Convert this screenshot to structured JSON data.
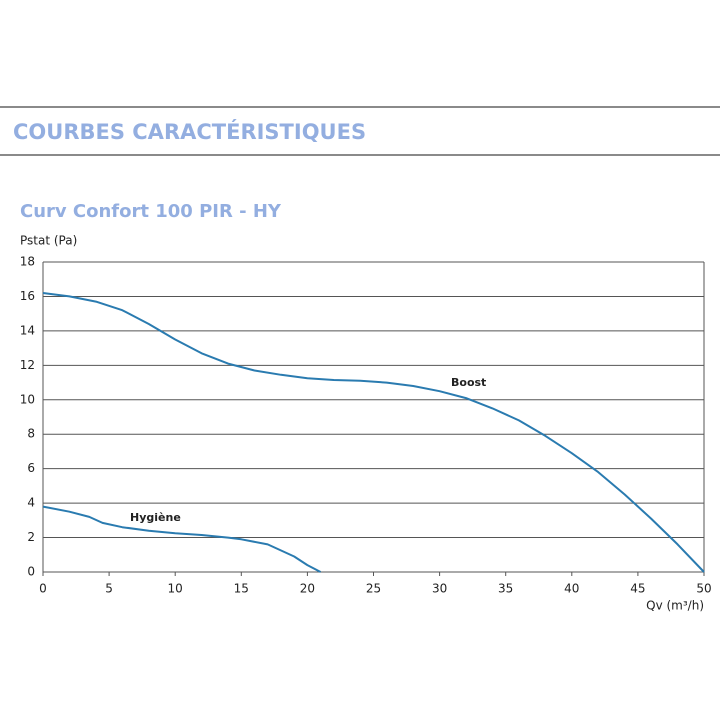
{
  "header": {
    "title": "COURBES CARACTÉRISTIQUES"
  },
  "chart_data": {
    "type": "line",
    "title": "Curv Confort 100 PIR - HY",
    "ylabel": "Pstat (Pa)",
    "xlabel": "Qv (m³/h)",
    "xlim": [
      0,
      50
    ],
    "ylim": [
      0,
      18
    ],
    "xticks": [
      0,
      5,
      10,
      15,
      20,
      25,
      30,
      35,
      40,
      45,
      50
    ],
    "yticks": [
      0,
      2,
      4,
      6,
      8,
      10,
      12,
      14,
      16,
      18
    ],
    "grid": true,
    "series": [
      {
        "name": "Boost",
        "color": "#2a7bb0",
        "x": [
          0,
          2,
          4,
          6,
          8,
          10,
          12,
          14,
          16,
          18,
          20,
          22,
          24,
          26,
          28,
          30,
          32,
          34,
          36,
          38,
          40,
          42,
          44,
          46,
          48,
          50
        ],
        "values": [
          16.2,
          16.0,
          15.7,
          15.2,
          14.4,
          13.5,
          12.7,
          12.1,
          11.7,
          11.45,
          11.25,
          11.15,
          11.1,
          11.0,
          10.8,
          10.5,
          10.1,
          9.5,
          8.8,
          7.9,
          6.9,
          5.8,
          4.5,
          3.1,
          1.6,
          0
        ]
      },
      {
        "name": "Hygiène",
        "color": "#2a7bb0",
        "x": [
          0,
          2,
          3.5,
          4.5,
          6,
          8,
          10,
          12,
          14,
          15,
          17,
          19,
          20,
          21
        ],
        "values": [
          3.8,
          3.5,
          3.2,
          2.85,
          2.6,
          2.4,
          2.25,
          2.15,
          2.0,
          1.9,
          1.6,
          0.9,
          0.4,
          0
        ]
      }
    ]
  }
}
